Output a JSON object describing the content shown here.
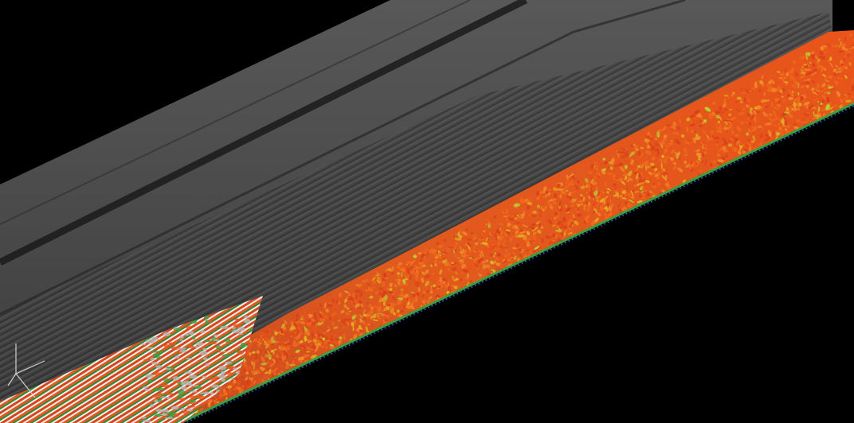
{
  "scene": {
    "background": "#000000",
    "wall_plane_color": "#4a4a4a",
    "shock_band_color": "#1c1c1c",
    "flow_colors": [
      "#e8541a",
      "#f06a1e",
      "#d9401a",
      "#f08a2a",
      "#e0b020",
      "#b8d030",
      "#3aa040",
      "#ffffff",
      "#2a5aa0"
    ],
    "orientation_triad": {
      "icon": "xyz-axes-icon",
      "axis_color": "#d0d0d0",
      "labels": [
        "",
        "",
        ""
      ]
    }
  }
}
